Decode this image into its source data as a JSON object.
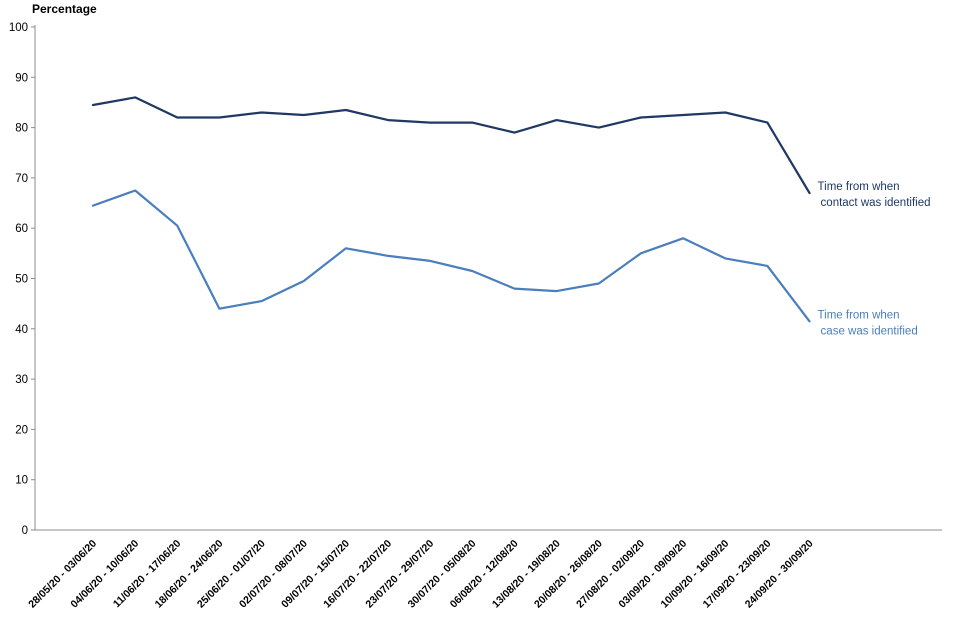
{
  "chart_data": {
    "type": "line",
    "title": "",
    "ylabel": "Percentage",
    "xlabel": "",
    "ylim": [
      0,
      100
    ],
    "ytick_interval": 10,
    "grid": false,
    "axis_color": "#8C8C8C",
    "tick_label_color": "#000000",
    "legend_position": "right-of-line-end",
    "categories": [
      "28/05/20 - 03/06/20",
      "04/06/20 - 10/06/20",
      "11/06/20 - 17/06/20",
      "18/06/20 - 24/06/20",
      "25/06/20 - 01/07/20",
      "02/07/20 - 08/07/20",
      "09/07/20 - 15/07/20",
      "16/07/20 - 22/07/20",
      "23/07/20 - 29/07/20",
      "30/07/20 - 05/08/20",
      "06/08/20 - 12/08/20",
      "13/08/20 - 19/08/20",
      "20/08/20 - 26/08/20",
      "27/08/20 - 02/09/20",
      "03/09/20 - 09/09/20",
      "10/09/20 - 16/09/20",
      "17/09/20 - 23/09/20",
      "24/09/20 - 30/09/20"
    ],
    "series": [
      {
        "name": "Time from when contact was identified",
        "label_lines": [
          "Time from when",
          "contact was identified"
        ],
        "color": "#1F3864",
        "values": [
          84.5,
          86,
          82,
          82,
          83,
          82.5,
          83.5,
          81.5,
          81,
          81,
          79,
          81.5,
          80,
          82,
          82.5,
          83,
          81,
          67
        ]
      },
      {
        "name": "Time from when case was identified",
        "label_lines": [
          "Time from when",
          "case was identified"
        ],
        "color": "#4A7EBC",
        "values": [
          64.5,
          67.5,
          60.5,
          44,
          45.5,
          49.5,
          56,
          54.5,
          53.5,
          51.5,
          48,
          47.5,
          49,
          55,
          58,
          54,
          52.5,
          41.5
        ]
      }
    ]
  }
}
